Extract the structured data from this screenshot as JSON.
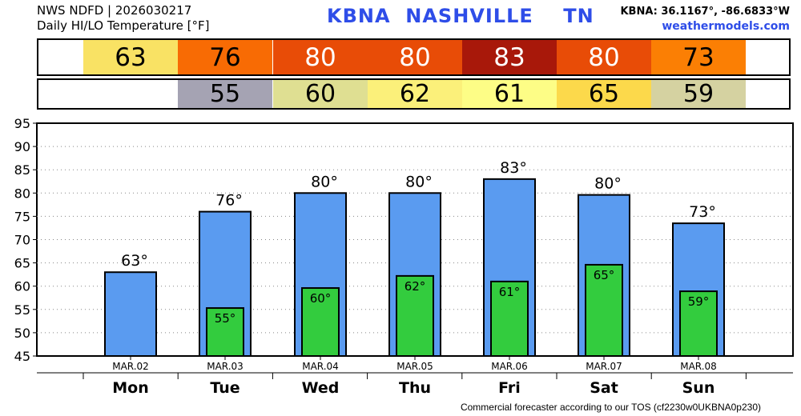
{
  "header": {
    "line1": "NWS NDFD | 2026030217",
    "line2": "Daily HI/LO Temperature [°F]",
    "station": "KBNA  NASHVILLE    TN",
    "coords": "KBNA: 36.1167°, -86.6833°W",
    "site": "weathermodels.com"
  },
  "hi_strip": [
    {
      "value": "63",
      "color": "#f9e264",
      "text_color": "#000000"
    },
    {
      "value": "76",
      "color": "#f86b04",
      "text_color": "#000000"
    },
    {
      "value": "80",
      "color": "#e84c07",
      "text_color": "#ffffff"
    },
    {
      "value": "80",
      "color": "#e84c07",
      "text_color": "#ffffff"
    },
    {
      "value": "83",
      "color": "#a8180a",
      "text_color": "#ffffff"
    },
    {
      "value": "80",
      "color": "#e84c07",
      "text_color": "#ffffff"
    },
    {
      "value": "73",
      "color": "#fb7f04",
      "text_color": "#000000"
    }
  ],
  "lo_strip": [
    {
      "value": "",
      "color": "#ffffff",
      "text_color": "#000000"
    },
    {
      "value": "55",
      "color": "#a5a3b3",
      "text_color": "#000000"
    },
    {
      "value": "60",
      "color": "#dfdf92",
      "text_color": "#000000"
    },
    {
      "value": "62",
      "color": "#fbf07a",
      "text_color": "#000000"
    },
    {
      "value": "61",
      "color": "#fdfd86",
      "text_color": "#000000"
    },
    {
      "value": "65",
      "color": "#fcd94b",
      "text_color": "#000000"
    },
    {
      "value": "59",
      "color": "#d5d2a1",
      "text_color": "#000000"
    }
  ],
  "chart_data": {
    "type": "bar",
    "categories": [
      "MAR.02",
      "MAR.03",
      "MAR.04",
      "MAR.05",
      "MAR.06",
      "MAR.07",
      "MAR.08"
    ],
    "days": [
      "Mon",
      "Tue",
      "Wed",
      "Thu",
      "Fri",
      "Sat",
      "Sun"
    ],
    "series": [
      {
        "values": [
          63,
          76,
          80,
          80,
          83,
          79.6,
          73.5
        ],
        "labels": [
          "63°",
          "76°",
          "80°",
          "80°",
          "83°",
          "80°",
          "73°"
        ],
        "color": "#5a9bf0"
      },
      {
        "values": [
          null,
          55.3,
          59.6,
          62.2,
          61,
          64.6,
          58.9
        ],
        "labels": [
          "",
          "55°",
          "60°",
          "62°",
          "61°",
          "65°",
          "59°"
        ],
        "color": "#33cc3e"
      }
    ],
    "ylim": [
      45,
      95
    ],
    "yticks": [
      45,
      50,
      55,
      60,
      65,
      70,
      75,
      80,
      85,
      90,
      95
    ],
    "grid": true
  },
  "footer": "Commercial forecaster according to our TOS (cf2230w0UKBNA0p230)"
}
